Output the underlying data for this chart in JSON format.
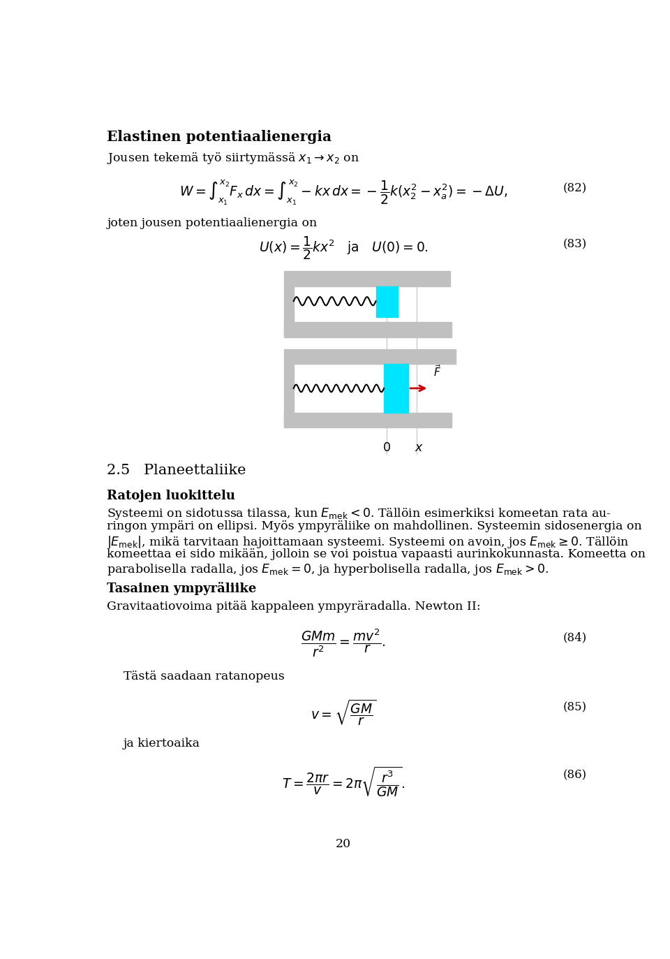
{
  "bg_color": "#ffffff",
  "title": "Elastinen potentiaalienergia",
  "page_number": "20",
  "line1": "Jousen tekemä työ siirtymässä $x_1 \\rightarrow x_2$ on",
  "eq82_label": "(82)",
  "line2": "joten jousen potentiaalienergia on",
  "eq83_label": "(83)",
  "section_num": "2.5",
  "section_title": "Planeettaliike",
  "subsection1": "Ratojen luokittelu",
  "para1_lines": [
    "Systeemi on sidotussa tilassa, kun $E_{\\mathrm{mek}} < 0$. Tällöin esimerkiksi komeetan rata au-",
    "ringon ympäri on ellipsi. Myös ympyräliike on mahdollinen. Systeemin sidosenergia on",
    "$|E_{\\mathrm{mek}}|$, mikä tarvitaan hajoittamaan systeemi. Systeemi on avoin, jos $E_{\\mathrm{mek}} \\geq 0$. Tällöin",
    "komeettaa ei sido mikään, jolloin se voi poistua vapaasti aurinkokunnasta. Komeetta on",
    "parabolisella radalla, jos $E_{\\mathrm{mek}} = 0$, ja hyperbolisella radalla, jos $E_{\\mathrm{mek}} > 0$."
  ],
  "subsection2": "Tasainen ympyräliike",
  "para2_line": "Gravitaatiovoima pitää kappaleen ympyräradalla. Newton II:",
  "eq84_label": "(84)",
  "line3": "Tästä saadaan ratanopeus",
  "eq85_label": "(85)",
  "line4": "ja kiertoaika",
  "eq86_label": "(86)",
  "cyan_color": "#00e5ff",
  "wall_color": "#c0c0c0",
  "arrow_color": "#cc0000",
  "text_color": "#000000",
  "spring_color": "#000000",
  "thin_line_color": "#c8c8c8"
}
